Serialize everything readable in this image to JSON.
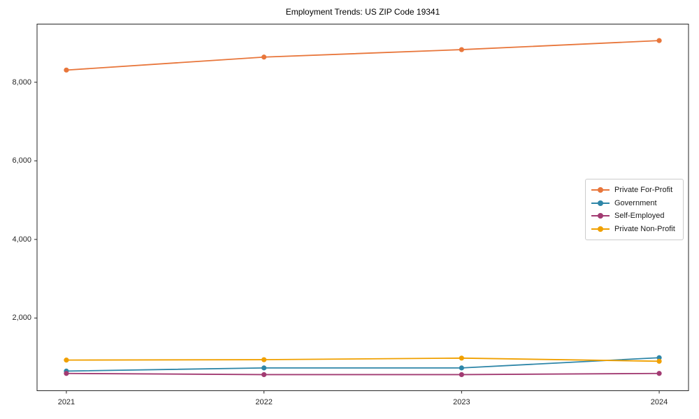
{
  "figure": {
    "title": "Employment Trends: US ZIP Code 19341",
    "background_color": "#ffffff",
    "spine_color": "#262626",
    "tick_color": "#262626"
  },
  "chart_data": {
    "type": "line",
    "title": "Employment Trends: US ZIP Code 19341",
    "xlabel": "",
    "ylabel": "",
    "grid": false,
    "legend_position": "right-middle",
    "x": [
      2021,
      2022,
      2023,
      2024
    ],
    "x_tick_labels": [
      "2021",
      "2022",
      "2023",
      "2024"
    ],
    "y_ticks": [
      2000,
      4000,
      6000,
      8000
    ],
    "y_tick_labels": [
      "2,000",
      "4,000",
      "6,000",
      "8,000"
    ],
    "ylim": [
      150,
      9480
    ],
    "series": [
      {
        "name": "Private For-Profit",
        "color": "#E8763B",
        "values": [
          8310,
          8640,
          8830,
          9060
        ]
      },
      {
        "name": "Government",
        "color": "#2E86A8",
        "values": [
          650,
          730,
          730,
          990
        ]
      },
      {
        "name": "Self-Employed",
        "color": "#A23B72",
        "values": [
          590,
          560,
          560,
          590
        ]
      },
      {
        "name": "Private Non-Profit",
        "color": "#F0A000",
        "values": [
          930,
          940,
          980,
          900
        ]
      }
    ]
  }
}
